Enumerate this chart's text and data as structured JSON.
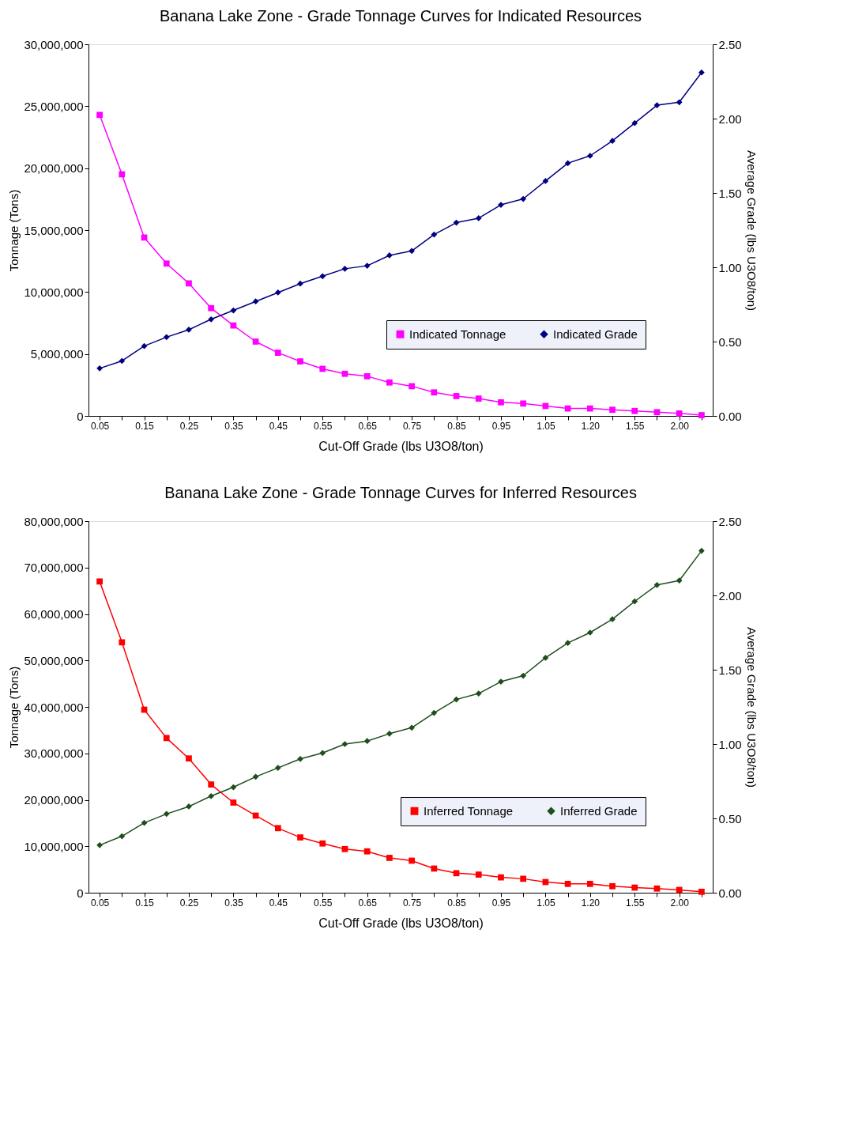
{
  "chart_data": [
    {
      "type": "line",
      "title": "Banana Lake Zone - Grade Tonnage Curves for Indicated Resources",
      "xlabel": "Cut-Off Grade (lbs U3O8/ton)",
      "ylabel": "Tonnage (Tons)",
      "y2label": "Average Grade (lbs U3O8/ton)",
      "categories": [
        "0.05",
        null,
        "0.15",
        null,
        "0.25",
        null,
        "0.35",
        null,
        "0.45",
        null,
        "0.55",
        null,
        "0.65",
        null,
        "0.75",
        null,
        "0.85",
        null,
        "0.95",
        null,
        "1.05",
        null,
        "1.20",
        null,
        "1.55",
        null,
        "2.00",
        null
      ],
      "ylim": [
        0,
        30000000
      ],
      "yticks": [
        0,
        {
          "value": 5000000,
          "label": "5,000,000"
        },
        {
          "value": 10000000,
          "label": "10,000,000"
        },
        {
          "value": 15000000,
          "label": "15,000,000"
        },
        {
          "value": 20000000,
          "label": "20,000,000"
        },
        {
          "value": 25000000,
          "label": "25,000,000"
        },
        {
          "value": 30000000,
          "label": "30,000,000"
        }
      ],
      "y2lim": [
        0,
        2.5
      ],
      "y2ticks": [
        {
          "value": 0,
          "label": "0.00"
        },
        {
          "value": 0.5,
          "label": "0.50"
        },
        {
          "value": 1,
          "label": "1.00"
        },
        {
          "value": 1.5,
          "label": "1.50"
        },
        {
          "value": 2,
          "label": "2.00"
        },
        {
          "value": 2.5,
          "label": "2.50"
        }
      ],
      "legend": "bottom right",
      "grid": false,
      "series": [
        {
          "name": "Indicated Tonnage",
          "color": "#ff00ff",
          "marker": "square",
          "values": [
            24300000,
            19500000,
            14400000,
            12300000,
            10700000,
            8700000,
            7300000,
            6000000,
            5100000,
            4400000,
            3800000,
            3400000,
            3200000,
            2700000,
            2400000,
            1900000,
            1600000,
            1400000,
            1100000,
            1000000,
            800000,
            600000,
            600000,
            500000,
            400000,
            300000,
            200000,
            60000
          ]
        },
        {
          "name": "Indicated Grade",
          "color": "#000080",
          "marker": "diamond",
          "axis": "y2",
          "values": [
            0.32,
            0.37,
            0.47,
            0.53,
            0.58,
            0.65,
            0.71,
            0.77,
            0.83,
            0.89,
            0.94,
            0.99,
            1.01,
            1.08,
            1.11,
            1.22,
            1.3,
            1.33,
            1.42,
            1.46,
            1.58,
            1.7,
            1.75,
            1.85,
            1.97,
            2.09,
            2.11,
            2.31
          ]
        }
      ]
    },
    {
      "type": "line",
      "title": "Banana Lake Zone - Grade Tonnage Curves for Inferred Resources",
      "xlabel": "Cut-Off Grade (lbs U3O8/ton)",
      "ylabel": "Tonnage (Tons)",
      "y2label": "Average Grade (lbs U3O8/ton)",
      "categories": [
        "0.05",
        null,
        "0.15",
        null,
        "0.25",
        null,
        "0.35",
        null,
        "0.45",
        null,
        "0.55",
        null,
        "0.65",
        null,
        "0.75",
        null,
        "0.85",
        null,
        "0.95",
        null,
        "1.05",
        null,
        "1.20",
        null,
        "1.55",
        null,
        "2.00",
        null
      ],
      "ylim": [
        0,
        80000000
      ],
      "yticks": [
        0,
        {
          "value": 10000000,
          "label": "10,000,000"
        },
        {
          "value": 20000000,
          "label": "20,000,000"
        },
        {
          "value": 30000000,
          "label": "30,000,000"
        },
        {
          "value": 40000000,
          "label": "40,000,000"
        },
        {
          "value": 50000000,
          "label": "50,000,000"
        },
        {
          "value": 60000000,
          "label": "60,000,000"
        },
        {
          "value": 70000000,
          "label": "70,000,000"
        },
        {
          "value": 80000000,
          "label": "80,000,000"
        }
      ],
      "y2lim": [
        0,
        2.5
      ],
      "y2ticks": [
        {
          "value": 0,
          "label": "0.00"
        },
        {
          "value": 0.5,
          "label": "0.50"
        },
        {
          "value": 1,
          "label": "1.00"
        },
        {
          "value": 1.5,
          "label": "1.50"
        },
        {
          "value": 2,
          "label": "2.00"
        },
        {
          "value": 2.5,
          "label": "2.50"
        }
      ],
      "legend": "bottom right",
      "grid": false,
      "series": [
        {
          "name": "Inferred Tonnage",
          "color": "#ff0000",
          "marker": "square",
          "values": [
            67000000,
            53900000,
            39400000,
            33300000,
            28900000,
            23300000,
            19400000,
            16600000,
            13900000,
            11900000,
            10600000,
            9400000,
            8900000,
            7500000,
            6900000,
            5200000,
            4200000,
            3900000,
            3300000,
            3000000,
            2300000,
            1900000,
            1900000,
            1400000,
            1100000,
            900000,
            600000,
            200000
          ]
        },
        {
          "name": "Inferred Grade",
          "color": "#1e4d1e",
          "marker": "diamond",
          "axis": "y2",
          "values": [
            0.32,
            0.38,
            0.47,
            0.53,
            0.58,
            0.65,
            0.71,
            0.78,
            0.84,
            0.9,
            0.94,
            1.0,
            1.02,
            1.07,
            1.11,
            1.21,
            1.3,
            1.34,
            1.42,
            1.46,
            1.58,
            1.68,
            1.75,
            1.84,
            1.96,
            2.07,
            2.1,
            2.3
          ]
        }
      ]
    }
  ]
}
